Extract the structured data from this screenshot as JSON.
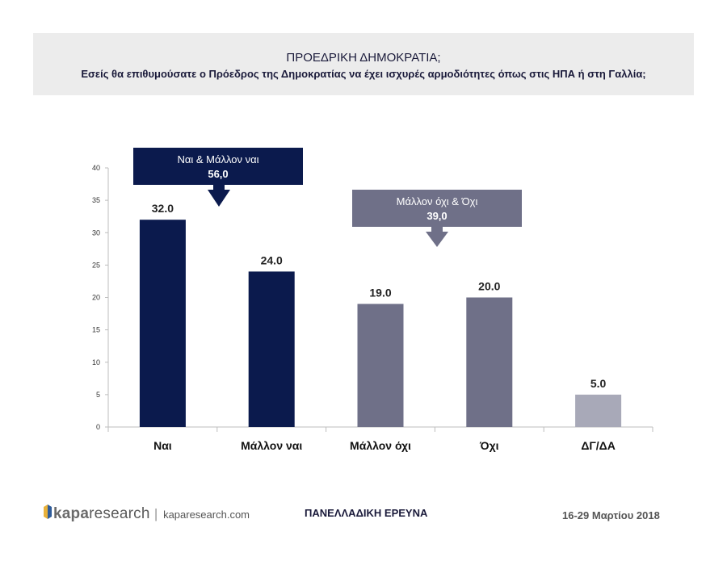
{
  "header": {
    "title": "ΠΡΟΕΔΡΙΚΗ ΔΗΜΟΚΡΑΤΙΑ;",
    "subtitle": "Εσείς θα επιθυμούσατε ο Πρόεδρος της Δημοκρατίας να έχει ισχυρές αρμοδιότητες όπως στις ΗΠΑ ή στη Γαλλία;"
  },
  "chart_data": {
    "type": "bar",
    "categories": [
      "Ναι",
      "Μάλλον ναι",
      "Μάλλον όχι",
      "Όχι",
      "ΔΓ/ΔΑ"
    ],
    "values": [
      32.0,
      24.0,
      19.0,
      20.0,
      5.0
    ],
    "value_labels": [
      "32.0",
      "24.0",
      "19.0",
      "20.0",
      "5.0"
    ],
    "bar_colors": [
      "#0b1a4d",
      "#0b1a4d",
      "#6f7088",
      "#6f7088",
      "#a8a9b8"
    ],
    "ylim": [
      0,
      40
    ],
    "yticks": [
      "0",
      "5",
      "10",
      "15",
      "20",
      "25",
      "30",
      "35",
      "40"
    ],
    "grid": false,
    "callouts": [
      {
        "label": "Ναι & Μάλλον ναι",
        "value": "56,0",
        "color": "#0b1a4d"
      },
      {
        "label": "Μάλλον όχι & Όχι",
        "value": "39,0",
        "color": "#6f7088"
      }
    ]
  },
  "footer": {
    "brand_bold": "kapa",
    "brand_rest": "research",
    "url": "kaparesearch.com",
    "survey": "ΠΑΝΕΛΛΑΔΙΚΗ ΕΡΕΥΝΑ",
    "date": "16-29 Μαρτίου 2018"
  }
}
